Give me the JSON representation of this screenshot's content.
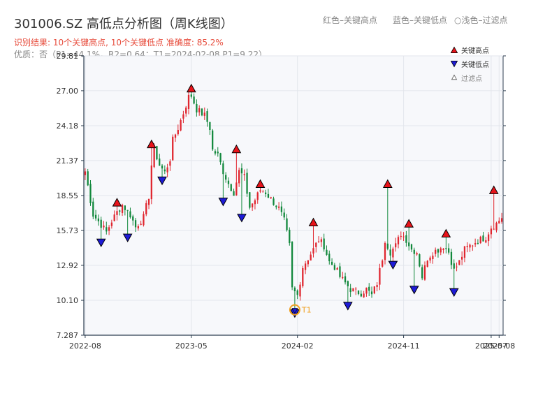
{
  "header": {
    "title": "301006.SZ 高低点分析图（周K线图）",
    "subtitle": "识别结果: 10个关键高点, 10个关键低点   准确度: 85.2%",
    "info": "优质：否（P1=44.1%，R2=0.64；T1=2024-02-08 P1=9.22）",
    "legend_red": "红色–关键高点",
    "legend_blue": "蓝色–关键低点",
    "legend_light": "浅色–过滤点"
  },
  "colors": {
    "up": "#e0262f",
    "down": "#12883c",
    "high_marker": "#e8131a",
    "low_marker": "#1d1bd6",
    "t1": "#f0a020",
    "plot_bg": "#f7f8fb"
  },
  "chart_data": {
    "type": "candlestick",
    "title": "301006.SZ 高低点分析图（周K线图）",
    "y_ticks": [
      "7.287",
      "10.10",
      "12.92",
      "15.73",
      "18.55",
      "21.37",
      "24.18",
      "27.00",
      "29.81"
    ],
    "y_tick_values": [
      7.287,
      10.1,
      12.92,
      15.73,
      18.55,
      21.37,
      24.18,
      27.0,
      29.81
    ],
    "ylim": [
      7.287,
      29.81
    ],
    "x_ticks": [
      "2022-08",
      "2023-05",
      "2024-02",
      "2024-11",
      "2025-07",
      "2025-08"
    ],
    "x_tick_index": [
      0,
      40,
      80,
      120,
      153,
      156
    ],
    "n_bars": 158,
    "grid": true,
    "legend": {
      "position": "top-right",
      "entries": [
        "关键高点",
        "关键低点",
        "过滤点"
      ]
    },
    "anchors": [
      [
        0,
        20.5
      ],
      [
        3,
        17.0
      ],
      [
        6,
        16.2
      ],
      [
        8,
        15.6
      ],
      [
        10,
        16.5
      ],
      [
        12,
        17.2
      ],
      [
        14,
        17.8
      ],
      [
        17,
        17.0
      ],
      [
        19,
        16.0
      ],
      [
        22,
        16.8
      ],
      [
        24,
        18.5
      ],
      [
        25,
        21.0
      ],
      [
        26,
        22.3
      ],
      [
        28,
        21.0
      ],
      [
        30,
        20.4
      ],
      [
        32,
        21.5
      ],
      [
        33,
        23.0
      ],
      [
        35,
        24.0
      ],
      [
        37,
        25.2
      ],
      [
        39,
        26.5
      ],
      [
        40,
        26.6
      ],
      [
        42,
        25.5
      ],
      [
        45,
        25.0
      ],
      [
        47,
        24.0
      ],
      [
        48,
        22.2
      ],
      [
        50,
        21.8
      ],
      [
        52,
        20.5
      ],
      [
        54,
        19.5
      ],
      [
        56,
        18.8
      ],
      [
        58,
        20.5
      ],
      [
        60,
        20.0
      ],
      [
        62,
        17.6
      ],
      [
        64,
        18.2
      ],
      [
        66,
        19.0
      ],
      [
        68,
        18.8
      ],
      [
        71,
        18.0
      ],
      [
        73,
        17.5
      ],
      [
        75,
        16.5
      ],
      [
        77,
        14.5
      ],
      [
        78,
        11.0
      ],
      [
        80,
        10.5
      ],
      [
        82,
        12.8
      ],
      [
        84,
        13.5
      ],
      [
        86,
        14.2
      ],
      [
        88,
        15.0
      ],
      [
        90,
        14.5
      ],
      [
        92,
        13.2
      ],
      [
        94,
        12.8
      ],
      [
        96,
        12.0
      ],
      [
        98,
        11.5
      ],
      [
        100,
        11.0
      ],
      [
        102,
        10.8
      ],
      [
        104,
        10.7
      ],
      [
        106,
        11.0
      ],
      [
        108,
        10.5
      ],
      [
        110,
        11.5
      ],
      [
        112,
        13.5
      ],
      [
        113,
        15.0
      ],
      [
        115,
        14.0
      ],
      [
        117,
        14.5
      ],
      [
        119,
        15.5
      ],
      [
        121,
        15.0
      ],
      [
        123,
        14.2
      ],
      [
        125,
        14.0
      ],
      [
        127,
        12.0
      ],
      [
        129,
        13.5
      ],
      [
        131,
        14.0
      ],
      [
        133,
        14.2
      ],
      [
        135,
        14.5
      ],
      [
        137,
        14.0
      ],
      [
        139,
        12.5
      ],
      [
        141,
        13.2
      ],
      [
        143,
        14.2
      ],
      [
        145,
        14.5
      ],
      [
        147,
        14.8
      ],
      [
        149,
        15.0
      ],
      [
        151,
        15.2
      ],
      [
        153,
        16.0
      ],
      [
        155,
        16.3
      ],
      [
        157,
        16.8
      ]
    ],
    "key_highs": [
      {
        "i": 12,
        "price": 17.8
      },
      {
        "i": 25,
        "price": 22.5
      },
      {
        "i": 40,
        "price": 27.0
      },
      {
        "i": 57,
        "price": 22.1
      },
      {
        "i": 66,
        "price": 19.3
      },
      {
        "i": 86,
        "price": 16.2
      },
      {
        "i": 114,
        "price": 19.3
      },
      {
        "i": 122,
        "price": 16.1
      },
      {
        "i": 136,
        "price": 15.3
      },
      {
        "i": 154,
        "price": 18.8
      }
    ],
    "key_lows": [
      {
        "i": 6,
        "price": 15.0
      },
      {
        "i": 16,
        "price": 15.4
      },
      {
        "i": 29,
        "price": 20.0
      },
      {
        "i": 52,
        "price": 18.3
      },
      {
        "i": 59,
        "price": 17.0
      },
      {
        "i": 79,
        "price": 9.3
      },
      {
        "i": 99,
        "price": 9.9
      },
      {
        "i": 116,
        "price": 13.2
      },
      {
        "i": 124,
        "price": 11.2
      },
      {
        "i": 139,
        "price": 11.0
      }
    ],
    "t1": {
      "i": 79,
      "price": 9.22,
      "label": "T1"
    }
  }
}
